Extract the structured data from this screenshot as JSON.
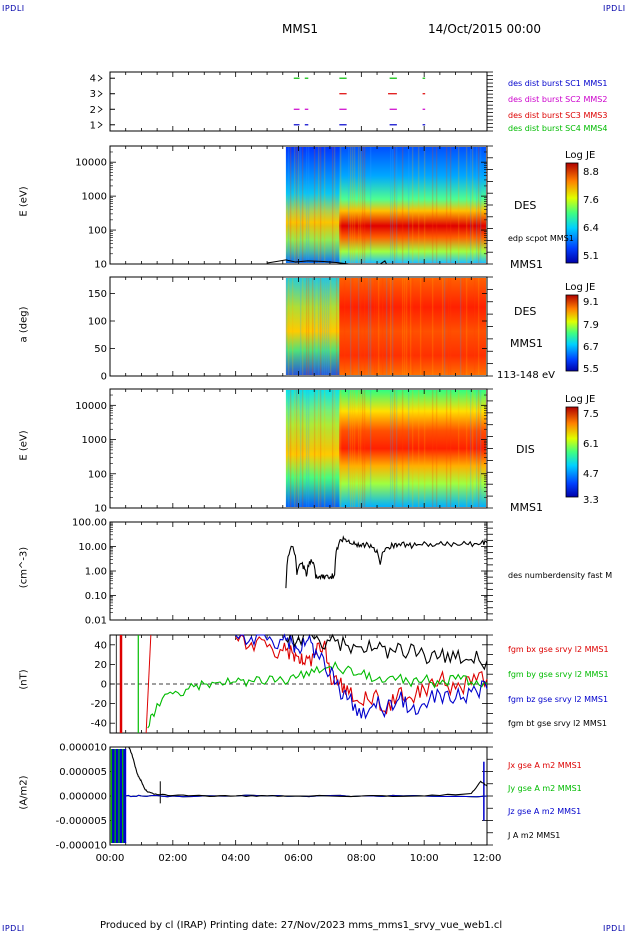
{
  "header": {
    "corner_label": "IPDLI",
    "title": "MMS1",
    "datetime": "14/Oct/2015 00:00"
  },
  "footer": {
    "text": "Produced by cl (IRAP)   Printing date: 27/Nov/2023   mms_mms1_srvy_vue_web1.cl"
  },
  "time_axis": {
    "ticks": [
      "00:00",
      "02:00",
      "04:00",
      "06:00",
      "08:00",
      "10:00",
      "12:00"
    ],
    "range_hours": [
      0,
      12
    ]
  },
  "chart_data": [
    {
      "type": "scatter",
      "name": "burst-intervals",
      "yticks": [
        "1",
        "2",
        "3",
        "4"
      ],
      "series": [
        {
          "name": "des dist burst SC1 MMS1",
          "color": "#0000cc",
          "y": 1,
          "intervals_h": [
            [
              5.85,
              6.0
            ],
            [
              6.2,
              6.28
            ],
            [
              7.3,
              7.5
            ],
            [
              8.9,
              9.1
            ],
            [
              9.95,
              10.0
            ]
          ]
        },
        {
          "name": "des dist burst SC2 MMS2",
          "color": "#cc00cc",
          "y": 2,
          "intervals_h": [
            [
              5.85,
              6.0
            ],
            [
              6.2,
              6.28
            ],
            [
              7.3,
              7.5
            ],
            [
              8.9,
              9.1
            ],
            [
              9.95,
              10.0
            ]
          ]
        },
        {
          "name": "des dist burst SC3 MMS3",
          "color": "#dd0000",
          "y": 3,
          "intervals_h": [
            [
              7.3,
              7.5
            ],
            [
              8.85,
              9.1
            ],
            [
              9.95,
              10.0
            ]
          ]
        },
        {
          "name": "des dist burst SC4 MMS4",
          "color": "#00bb00",
          "y": 4,
          "intervals_h": [
            [
              5.85,
              6.0
            ],
            [
              6.2,
              6.28
            ],
            [
              7.3,
              7.5
            ],
            [
              8.9,
              9.1
            ],
            [
              9.95,
              10.0
            ]
          ]
        }
      ]
    },
    {
      "type": "heatmap",
      "name": "des-energy",
      "ylabel": "E (eV)",
      "yticks": [
        "10",
        "100",
        "1000",
        "10000"
      ],
      "log_y": true,
      "ylim": [
        10,
        30000
      ],
      "instrument": "DES",
      "spacecraft": "MMS1",
      "overlay_label": "edp scpot MMS1",
      "colorbar": {
        "title": "Log JE",
        "ticks": [
          "8.8",
          "7.6",
          "6.4",
          "5.1"
        ],
        "range": [
          5.1,
          8.8
        ]
      },
      "data_start_h": 5.6
    },
    {
      "type": "heatmap",
      "name": "des-pitch-angle",
      "ylabel": "a (deg)",
      "yticks": [
        "0",
        "50",
        "100",
        "150"
      ],
      "ylim": [
        0,
        180
      ],
      "instrument": "DES",
      "spacecraft": "MMS1",
      "energy_range": "113-148 eV",
      "colorbar": {
        "title": "Log JE",
        "ticks": [
          "9.1",
          "7.9",
          "6.7",
          "5.5"
        ],
        "range": [
          5.5,
          9.1
        ]
      },
      "data_start_h": 5.6
    },
    {
      "type": "heatmap",
      "name": "dis-energy",
      "ylabel": "E (eV)",
      "yticks": [
        "10",
        "100",
        "1000",
        "10000"
      ],
      "log_y": true,
      "ylim": [
        10,
        30000
      ],
      "instrument": "DIS",
      "spacecraft": "MMS1",
      "colorbar": {
        "title": "Log JE",
        "ticks": [
          "7.5",
          "6.1",
          "4.7",
          "3.3"
        ],
        "range": [
          3.3,
          7.5
        ]
      },
      "data_start_h": 5.6
    },
    {
      "type": "line",
      "name": "density",
      "ylabel": "(cm^-3)",
      "yticks": [
        "0.01",
        "0.10",
        "1.00",
        "10.00",
        "100.00"
      ],
      "log_y": true,
      "ylim": [
        0.01,
        100
      ],
      "series": [
        {
          "name": "des numberdensity fast M",
          "color": "#000000",
          "x": [
            5.6,
            5.8,
            5.95,
            6.1,
            6.25,
            6.4,
            6.55,
            6.7,
            6.85,
            7.0,
            7.15,
            7.3,
            7.45,
            7.6,
            7.8,
            8.0,
            8.2,
            8.4,
            8.6,
            8.8,
            9.0,
            9.2,
            9.5,
            9.8,
            10.2,
            10.6,
            11.0,
            11.4,
            11.8,
            12.0
          ],
          "y": [
            0.2,
            10,
            0.7,
            2,
            0.6,
            3,
            0.5,
            0.5,
            0.6,
            0.55,
            0.7,
            15,
            20,
            18,
            12,
            10,
            13,
            9,
            1.8,
            9,
            11,
            13,
            11,
            12,
            13,
            12,
            13,
            12,
            13,
            14
          ]
        }
      ]
    },
    {
      "type": "line",
      "name": "magnetic-field",
      "ylabel": "(nT)",
      "yticks": [
        "-40",
        "-20",
        "0",
        "20",
        "40"
      ],
      "ylim": [
        -50,
        50
      ],
      "series": [
        {
          "name": "fgm bx gse srvy l2 MMS1",
          "color": "#dd0000",
          "x": [
            4.0,
            4.5,
            5.0,
            5.5,
            5.8,
            6.0,
            6.2,
            6.5,
            6.8,
            7.0,
            7.3,
            7.6,
            8.0,
            8.4,
            8.8,
            9.2,
            9.6,
            10.0,
            10.5,
            11.0,
            11.5,
            12.0
          ],
          "y": [
            48,
            42,
            38,
            34,
            32,
            28,
            20,
            30,
            40,
            10,
            0,
            -10,
            -20,
            -10,
            -30,
            -5,
            -15,
            -5,
            5,
            -5,
            0,
            5
          ]
        },
        {
          "name": "fgm by gse srvy l2 MMS1",
          "color": "#00bb00",
          "x": [
            1.2,
            1.5,
            2.0,
            2.5,
            3.0,
            3.5,
            4.0,
            4.5,
            5.0,
            5.5,
            6.0,
            6.5,
            7.0,
            7.5,
            8.0,
            8.5,
            9.0,
            9.5,
            10.0,
            10.5,
            11.0,
            11.5,
            12.0
          ],
          "y": [
            -45,
            -20,
            -10,
            -5,
            0,
            2,
            2,
            3,
            3,
            4,
            8,
            12,
            18,
            15,
            10,
            5,
            8,
            2,
            5,
            0,
            5,
            2,
            0
          ]
        },
        {
          "name": "fgm bz gse srvy l2 MMS1",
          "color": "#0000cc",
          "x": [
            4.0,
            4.5,
            5.0,
            5.5,
            5.8,
            6.0,
            6.3,
            6.6,
            7.0,
            7.3,
            7.6,
            8.0,
            8.4,
            8.8,
            9.2,
            9.6,
            10.0,
            10.5,
            11.0,
            11.5,
            12.0
          ],
          "y": [
            50,
            48,
            45,
            45,
            42,
            35,
            45,
            30,
            10,
            -5,
            -15,
            -35,
            -20,
            -25,
            -15,
            -25,
            -20,
            -10,
            -15,
            -8,
            -5
          ]
        },
        {
          "name": "fgm bt gse srvy l2 MMS1",
          "color": "#000000",
          "x": [
            5.6,
            6.0,
            6.5,
            7.0,
            7.5,
            8.0,
            8.5,
            9.0,
            9.5,
            10.0,
            10.5,
            11.0,
            11.5,
            12.0
          ],
          "y": [
            45,
            48,
            46,
            44,
            40,
            38,
            36,
            34,
            32,
            30,
            28,
            26,
            25,
            24
          ]
        }
      ]
    },
    {
      "type": "line",
      "name": "current-density",
      "ylabel": "(A/m2)",
      "yticks": [
        "-0.000010",
        "-0.000005",
        "0.000000",
        "0.000005",
        "0.000010"
      ],
      "ylim": [
        -1e-05,
        1e-05
      ],
      "series": [
        {
          "name": "Jx gse A m2 MMS1",
          "color": "#dd0000",
          "x": [
            0.5,
            1.0,
            2.0,
            4.0,
            6.0,
            8.0,
            10.0,
            12.0
          ],
          "y": [
            0,
            0,
            0,
            0,
            0,
            0,
            0,
            0
          ]
        },
        {
          "name": "Jy gse A m2 MMS1",
          "color": "#00bb00",
          "x": [
            0.5,
            1.0,
            2.0,
            4.0,
            6.0,
            8.0,
            10.0,
            12.0
          ],
          "y": [
            0,
            0,
            0,
            0,
            0,
            0,
            0,
            0
          ]
        },
        {
          "name": "Jz gse A m2 MMS1",
          "color": "#0000cc",
          "x": [
            0.5,
            1.0,
            2.0,
            4.0,
            6.0,
            8.0,
            10.0,
            12.0
          ],
          "y": [
            0,
            0,
            0,
            0,
            0,
            0,
            0,
            0
          ]
        },
        {
          "name": "J A m2 MMS1",
          "color": "#000000",
          "x": [
            0.6,
            0.7,
            0.8,
            0.9,
            1.0,
            1.1,
            1.2,
            1.5,
            2.0,
            3.0,
            4.0,
            5.0,
            6.0,
            8.0,
            10.0,
            11.5,
            11.8,
            12.0
          ],
          "y": [
            1e-05,
            8.5e-06,
            6e-06,
            4e-06,
            3e-06,
            1.5e-06,
            8e-07,
            3e-07,
            1e-07,
            5e-08,
            0,
            0,
            0,
            0,
            0,
            5e-07,
            3e-06,
            2e-06
          ]
        }
      ]
    }
  ]
}
